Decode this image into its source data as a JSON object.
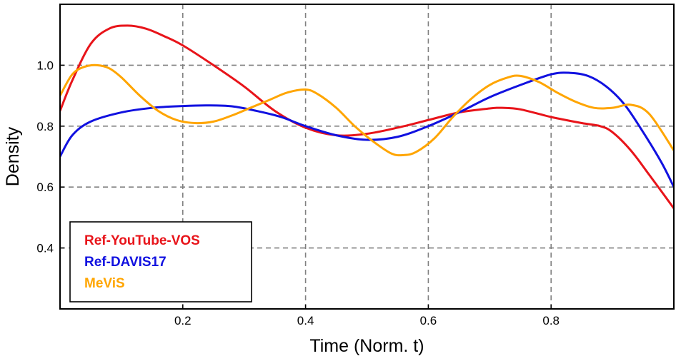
{
  "chart_data": {
    "type": "line",
    "title": "",
    "xlabel": "Time (Norm. t)",
    "ylabel": "Density",
    "xlim": [
      0.0,
      1.0
    ],
    "ylim": [
      0.2,
      1.2
    ],
    "xticks": [
      0.2,
      0.4,
      0.6,
      0.8
    ],
    "xtick_labels": [
      "0.2",
      "0.4",
      "0.6",
      "0.8"
    ],
    "yticks": [
      0.4,
      0.6,
      0.8,
      1.0
    ],
    "ytick_labels": [
      "0.4",
      "0.6",
      "0.8",
      "1.0"
    ],
    "grid": true,
    "legend_position": "bottom-left",
    "series": [
      {
        "name": "Ref-YouTube-VOS",
        "color": "#e8141a",
        "x": [
          0.0,
          0.02,
          0.05,
          0.08,
          0.11,
          0.14,
          0.17,
          0.2,
          0.25,
          0.3,
          0.35,
          0.4,
          0.45,
          0.5,
          0.55,
          0.6,
          0.65,
          0.7,
          0.72,
          0.75,
          0.8,
          0.85,
          0.88,
          0.9,
          0.93,
          0.96,
          1.0
        ],
        "y": [
          0.85,
          0.95,
          1.07,
          1.12,
          1.13,
          1.12,
          1.095,
          1.065,
          1.0,
          0.93,
          0.85,
          0.795,
          0.77,
          0.775,
          0.795,
          0.82,
          0.845,
          0.858,
          0.86,
          0.855,
          0.83,
          0.81,
          0.8,
          0.78,
          0.72,
          0.64,
          0.53
        ]
      },
      {
        "name": "Ref-DAVIS17",
        "color": "#1111e0",
        "x": [
          0.0,
          0.02,
          0.05,
          0.1,
          0.15,
          0.2,
          0.24,
          0.28,
          0.32,
          0.36,
          0.4,
          0.45,
          0.5,
          0.55,
          0.6,
          0.65,
          0.7,
          0.75,
          0.8,
          0.83,
          0.86,
          0.89,
          0.92,
          0.95,
          0.98,
          1.0
        ],
        "y": [
          0.7,
          0.77,
          0.815,
          0.845,
          0.86,
          0.866,
          0.868,
          0.865,
          0.85,
          0.83,
          0.8,
          0.77,
          0.755,
          0.765,
          0.8,
          0.845,
          0.895,
          0.935,
          0.97,
          0.975,
          0.965,
          0.93,
          0.87,
          0.78,
          0.68,
          0.6
        ]
      },
      {
        "name": "MeViS",
        "color": "#ffa500",
        "x": [
          0.0,
          0.02,
          0.04,
          0.06,
          0.08,
          0.1,
          0.13,
          0.16,
          0.19,
          0.22,
          0.25,
          0.28,
          0.31,
          0.34,
          0.37,
          0.4,
          0.42,
          0.45,
          0.48,
          0.51,
          0.54,
          0.56,
          0.58,
          0.61,
          0.64,
          0.67,
          0.7,
          0.73,
          0.75,
          0.78,
          0.81,
          0.84,
          0.87,
          0.9,
          0.93,
          0.96,
          1.0
        ],
        "y": [
          0.9,
          0.97,
          0.995,
          1.0,
          0.99,
          0.96,
          0.9,
          0.85,
          0.82,
          0.81,
          0.815,
          0.835,
          0.86,
          0.885,
          0.91,
          0.92,
          0.905,
          0.86,
          0.8,
          0.75,
          0.71,
          0.705,
          0.715,
          0.76,
          0.83,
          0.89,
          0.935,
          0.96,
          0.965,
          0.945,
          0.91,
          0.88,
          0.86,
          0.86,
          0.87,
          0.84,
          0.72
        ]
      }
    ]
  }
}
